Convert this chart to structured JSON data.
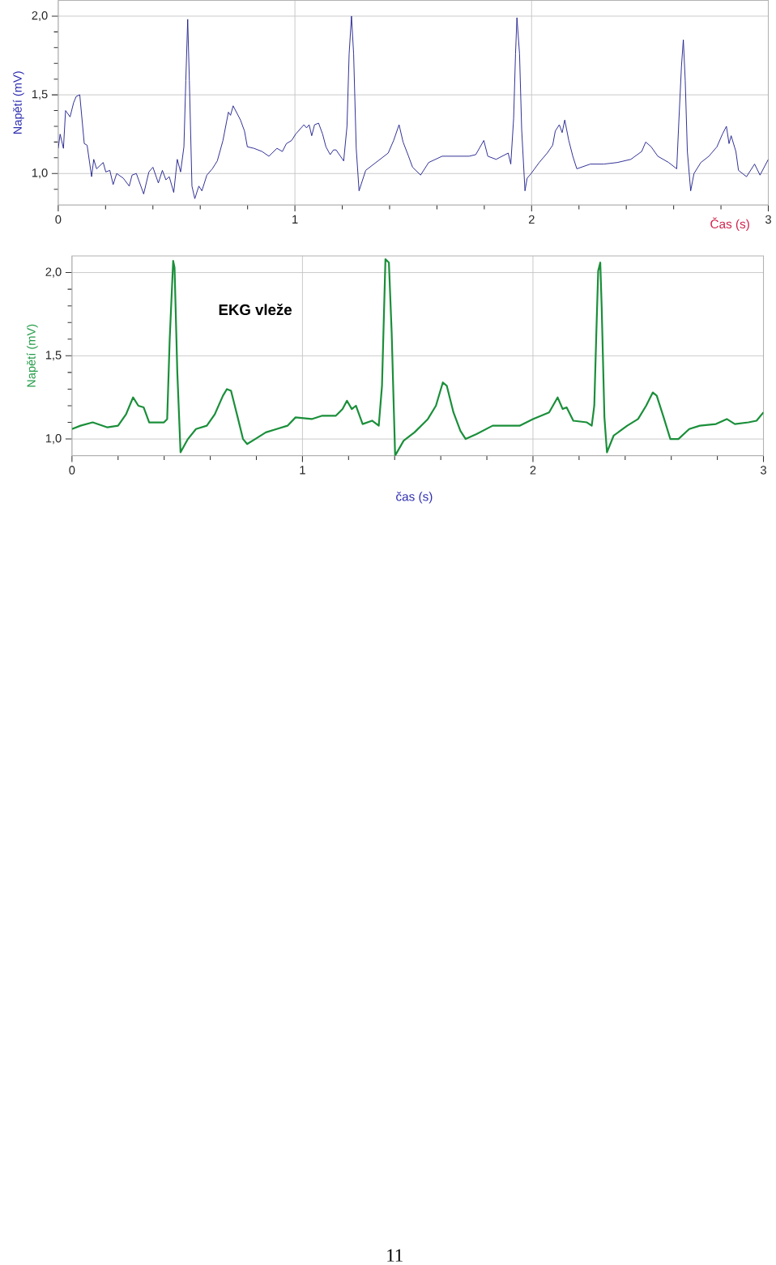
{
  "chart_data": [
    {
      "type": "line",
      "ylabel": "Napětí (mV)",
      "xlabel": "Čas (s)",
      "color": "#1c1c8c",
      "marker": "none",
      "line_style": "solid",
      "grid": true,
      "xlim": [
        0,
        3
      ],
      "ylim": [
        0.8,
        2.1
      ],
      "xticks": [
        0,
        {
          "value": 0.2,
          "label": null
        },
        {
          "value": 0.4,
          "label": null
        },
        {
          "value": 0.6,
          "label": null
        },
        {
          "value": 0.8,
          "label": null
        },
        1,
        {
          "value": 1.2,
          "label": null
        },
        {
          "value": 1.4,
          "label": null
        },
        {
          "value": 1.6,
          "label": null
        },
        {
          "value": 1.8,
          "label": null
        },
        2,
        {
          "value": 2.2,
          "label": null
        },
        {
          "value": 2.4,
          "label": null
        },
        {
          "value": 2.6,
          "label": null
        },
        {
          "value": 2.8,
          "label": null
        },
        3
      ],
      "yticks": [
        {
          "value": 0.9,
          "label": null
        },
        {
          "value": 1.0,
          "label": "1,0"
        },
        {
          "value": 1.1,
          "label": null
        },
        {
          "value": 1.2,
          "label": null
        },
        {
          "value": 1.3,
          "label": null
        },
        {
          "value": 1.4,
          "label": null
        },
        {
          "value": 1.5,
          "label": "1,5"
        },
        {
          "value": 1.6,
          "label": null
        },
        {
          "value": 1.7,
          "label": null
        },
        {
          "value": 1.8,
          "label": null
        },
        {
          "value": 1.9,
          "label": null
        },
        {
          "value": 2.0,
          "label": "2,0"
        }
      ],
      "x": [
        0,
        0.008,
        0.022,
        0.031,
        0.05,
        0.065,
        0.076,
        0.091,
        0.11,
        0.122,
        0.141,
        0.15,
        0.162,
        0.19,
        0.201,
        0.218,
        0.232,
        0.247,
        0.275,
        0.3,
        0.312,
        0.33,
        0.361,
        0.383,
        0.4,
        0.423,
        0.44,
        0.455,
        0.469,
        0.488,
        0.503,
        0.517,
        0.531,
        0.539,
        0.547,
        0.554,
        0.565,
        0.577,
        0.594,
        0.607,
        0.628,
        0.651,
        0.672,
        0.696,
        0.719,
        0.728,
        0.739,
        0.77,
        0.787,
        0.799,
        0.827,
        0.861,
        0.89,
        0.924,
        0.947,
        0.964,
        0.986,
        1.003,
        1.038,
        1.049,
        1.06,
        1.071,
        1.083,
        1.1,
        1.117,
        1.131,
        1.149,
        1.163,
        1.174,
        1.183,
        1.206,
        1.22,
        1.229,
        1.239,
        1.248,
        1.259,
        1.271,
        1.299,
        1.394,
        1.417,
        1.44,
        1.457,
        1.48,
        1.497,
        1.531,
        1.565,
        1.622,
        1.679,
        1.736,
        1.764,
        1.798,
        1.815,
        1.85,
        1.901,
        1.912,
        1.924,
        1.932,
        1.938,
        1.949,
        1.958,
        1.972,
        1.981,
        1.998,
        2.032,
        2.066,
        2.089,
        2.1,
        2.117,
        2.129,
        2.14,
        2.157,
        2.174,
        2.191,
        2.248,
        2.305,
        2.362,
        2.419,
        2.465,
        2.482,
        2.505,
        2.533,
        2.579,
        2.613,
        2.622,
        2.633,
        2.641,
        2.649,
        2.658,
        2.672,
        2.686,
        2.715,
        2.749,
        2.783,
        2.806,
        2.823,
        2.834,
        2.843,
        2.863,
        2.874,
        2.908,
        2.942,
        2.965,
        3.0
      ],
      "values": [
        1.16,
        1.25,
        1.16,
        1.4,
        1.36,
        1.45,
        1.49,
        1.5,
        1.19,
        1.18,
        0.98,
        1.09,
        1.03,
        1.07,
        1.01,
        1.02,
        0.93,
        1.0,
        0.97,
        0.92,
        0.99,
        1.0,
        0.87,
        1.01,
        1.04,
        0.94,
        1.02,
        0.96,
        0.98,
        0.88,
        1.09,
        1.01,
        1.17,
        1.59,
        1.98,
        1.59,
        0.92,
        0.84,
        0.92,
        0.89,
        0.99,
        1.03,
        1.08,
        1.21,
        1.39,
        1.37,
        1.43,
        1.34,
        1.27,
        1.17,
        1.16,
        1.14,
        1.11,
        1.16,
        1.14,
        1.19,
        1.21,
        1.25,
        1.31,
        1.29,
        1.31,
        1.24,
        1.31,
        1.32,
        1.25,
        1.17,
        1.12,
        1.15,
        1.15,
        1.13,
        1.08,
        1.3,
        1.76,
        2.0,
        1.76,
        1.16,
        0.89,
        1.02,
        1.13,
        1.21,
        1.31,
        1.2,
        1.11,
        1.04,
        0.99,
        1.07,
        1.11,
        1.11,
        1.11,
        1.12,
        1.21,
        1.11,
        1.09,
        1.13,
        1.06,
        1.35,
        1.76,
        1.99,
        1.76,
        1.28,
        0.89,
        0.97,
        1.0,
        1.07,
        1.13,
        1.18,
        1.27,
        1.31,
        1.26,
        1.34,
        1.21,
        1.11,
        1.03,
        1.06,
        1.06,
        1.07,
        1.09,
        1.14,
        1.2,
        1.17,
        1.11,
        1.07,
        1.03,
        1.33,
        1.68,
        1.85,
        1.59,
        1.14,
        0.89,
        1.0,
        1.07,
        1.11,
        1.17,
        1.25,
        1.3,
        1.19,
        1.24,
        1.14,
        1.02,
        0.98,
        1.06,
        0.99,
        1.09
      ]
    },
    {
      "type": "line",
      "title": "EKG vleže",
      "ylabel": "Napětí (mV)",
      "xlabel": "čas (s)",
      "color": "#1a8f3a",
      "marker": "none",
      "line_style": "solid",
      "grid": true,
      "annotations": [
        "11"
      ],
      "xlim": [
        0,
        3
      ],
      "ylim": [
        0.9,
        2.1
      ],
      "xticks": [
        0,
        {
          "value": 0.2,
          "label": null
        },
        {
          "value": 0.4,
          "label": null
        },
        {
          "value": 0.6,
          "label": null
        },
        {
          "value": 0.8,
          "label": null
        },
        1,
        {
          "value": 1.2,
          "label": null
        },
        {
          "value": 1.4,
          "label": null
        },
        {
          "value": 1.6,
          "label": null
        },
        {
          "value": 1.8,
          "label": null
        },
        2,
        {
          "value": 2.2,
          "label": null
        },
        {
          "value": 2.4,
          "label": null
        },
        {
          "value": 2.6,
          "label": null
        },
        {
          "value": 2.8,
          "label": null
        },
        3
      ],
      "yticks": [
        {
          "value": 1.0,
          "label": "1,0"
        },
        {
          "value": 1.1,
          "label": null
        },
        {
          "value": 1.2,
          "label": null
        },
        {
          "value": 1.3,
          "label": null
        },
        {
          "value": 1.4,
          "label": null
        },
        {
          "value": 1.5,
          "label": "1,5"
        },
        {
          "value": 1.6,
          "label": null
        },
        {
          "value": 1.7,
          "label": null
        },
        {
          "value": 1.8,
          "label": null
        },
        {
          "value": 1.9,
          "label": null
        },
        {
          "value": 2.0,
          "label": "2,0"
        }
      ],
      "x": [
        0,
        0.037,
        0.09,
        0.154,
        0.2,
        0.235,
        0.265,
        0.288,
        0.311,
        0.335,
        0.399,
        0.413,
        0.424,
        0.439,
        0.445,
        0.457,
        0.471,
        0.503,
        0.538,
        0.585,
        0.62,
        0.655,
        0.672,
        0.69,
        0.719,
        0.742,
        0.76,
        0.795,
        0.841,
        0.888,
        0.935,
        0.97,
        1.04,
        1.086,
        1.145,
        1.174,
        1.193,
        1.214,
        1.232,
        1.261,
        1.302,
        1.331,
        1.345,
        1.36,
        1.375,
        1.387,
        1.402,
        1.439,
        1.486,
        1.544,
        1.579,
        1.609,
        1.626,
        1.655,
        1.685,
        1.708,
        1.755,
        1.825,
        1.895,
        1.942,
        2.0,
        2.07,
        2.107,
        2.129,
        2.146,
        2.175,
        2.234,
        2.255,
        2.266,
        2.275,
        2.283,
        2.292,
        2.298,
        2.31,
        2.321,
        2.35,
        2.409,
        2.456,
        2.491,
        2.52,
        2.537,
        2.567,
        2.596,
        2.631,
        2.678,
        2.724,
        2.794,
        2.841,
        2.876,
        2.935,
        2.97,
        3.0
      ],
      "values": [
        1.06,
        1.08,
        1.1,
        1.07,
        1.08,
        1.15,
        1.25,
        1.2,
        1.19,
        1.1,
        1.1,
        1.12,
        1.6,
        2.07,
        2.03,
        1.4,
        0.92,
        1.0,
        1.06,
        1.08,
        1.15,
        1.26,
        1.3,
        1.29,
        1.13,
        1.0,
        0.97,
        1.0,
        1.04,
        1.06,
        1.08,
        1.13,
        1.12,
        1.14,
        1.14,
        1.18,
        1.23,
        1.18,
        1.2,
        1.09,
        1.11,
        1.08,
        1.32,
        2.08,
        2.06,
        1.64,
        0.9,
        0.99,
        1.04,
        1.12,
        1.2,
        1.34,
        1.32,
        1.16,
        1.05,
        1.0,
        1.03,
        1.08,
        1.08,
        1.08,
        1.12,
        1.16,
        1.25,
        1.18,
        1.19,
        1.11,
        1.1,
        1.08,
        1.2,
        1.64,
        2.01,
        2.06,
        1.8,
        1.13,
        0.92,
        1.02,
        1.08,
        1.12,
        1.2,
        1.28,
        1.26,
        1.13,
        1.0,
        1.0,
        1.06,
        1.08,
        1.09,
        1.12,
        1.09,
        1.1,
        1.11,
        1.16
      ]
    }
  ]
}
